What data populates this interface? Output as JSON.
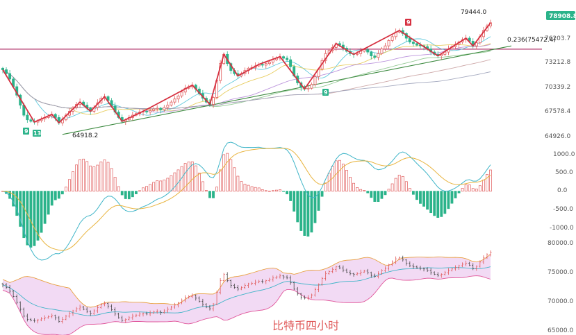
{
  "chart_data": [
    {
      "type": "candlestick",
      "title": "",
      "ylim": [
        63300,
        80600
      ],
      "yticks": [
        "76203.7",
        "73212.8",
        "70339.2",
        "67578.4",
        "64926.0"
      ],
      "current_price": "78908.8",
      "annotations": {
        "high": "79444.0",
        "low": "64918.2",
        "fib": "0.236(75472.4)",
        "fib_value": 75472.4
      },
      "td_markers": [
        "9",
        "13",
        "9",
        "9"
      ],
      "close": [
        72800,
        72300,
        71600,
        70600,
        69500,
        68200,
        66900,
        66300,
        66100,
        66000,
        66200,
        66400,
        66600,
        66800,
        67000,
        66600,
        65900,
        66300,
        66900,
        67400,
        67900,
        68300,
        68600,
        68200,
        67800,
        67400,
        67900,
        68500,
        69100,
        69300,
        68800,
        68100,
        67300,
        66600,
        66100,
        66300,
        66600,
        66900,
        67100,
        67300,
        67400,
        67300,
        67500,
        67700,
        67800,
        67600,
        67900,
        68200,
        68600,
        69000,
        69400,
        69900,
        70400,
        70600,
        70800,
        70300,
        69700,
        69100,
        68600,
        68300,
        69200,
        71400,
        73600,
        74800,
        73600,
        72700,
        72300,
        72000,
        72300,
        72700,
        73000,
        73100,
        73300,
        73500,
        73400,
        73600,
        73800,
        74100,
        74300,
        74500,
        74300,
        74100,
        73200,
        72000,
        71100,
        70500,
        70300,
        70400,
        70900,
        71900,
        72900,
        74000,
        74900,
        75300,
        75700,
        76200,
        76000,
        75600,
        75200,
        74900,
        74800,
        74900,
        75200,
        75400,
        75100,
        74600,
        74400,
        74900,
        75500,
        75900,
        76600,
        77100,
        77700,
        77900,
        77500,
        76900,
        76400,
        76200,
        76000,
        75900,
        75800,
        75500,
        75100,
        74800,
        74600,
        74800,
        75100,
        75500,
        75800,
        76100,
        76400,
        76700,
        76900,
        76500,
        75900,
        76300,
        77100,
        77900,
        78500,
        78900
      ],
      "macd_ylim": [
        -1150,
        1100
      ],
      "macd_yticks": [
        "1000.0",
        "500.0",
        "0.0",
        "-500.0",
        "-1000.0"
      ],
      "boll_ylim": [
        64000,
        81000
      ],
      "boll_yticks": [
        "80000.0",
        "75000.0",
        "70000.0",
        "65000.0"
      ],
      "colors": {
        "up": "#e05a5a",
        "down": "#2bb38a",
        "zigzag": "#d63040",
        "fib_line": "#b0306a",
        "trend_line": "#3d8a40",
        "macd_dif": "#3fb5c8",
        "macd_dea": "#e8b33c",
        "boll_fill": "#f0d3f2",
        "boll_band": "#e0559a",
        "boll_mid": "#3fb5c8",
        "price_tag": "#2bb38a"
      }
    }
  ],
  "caption": "比特币四小时"
}
